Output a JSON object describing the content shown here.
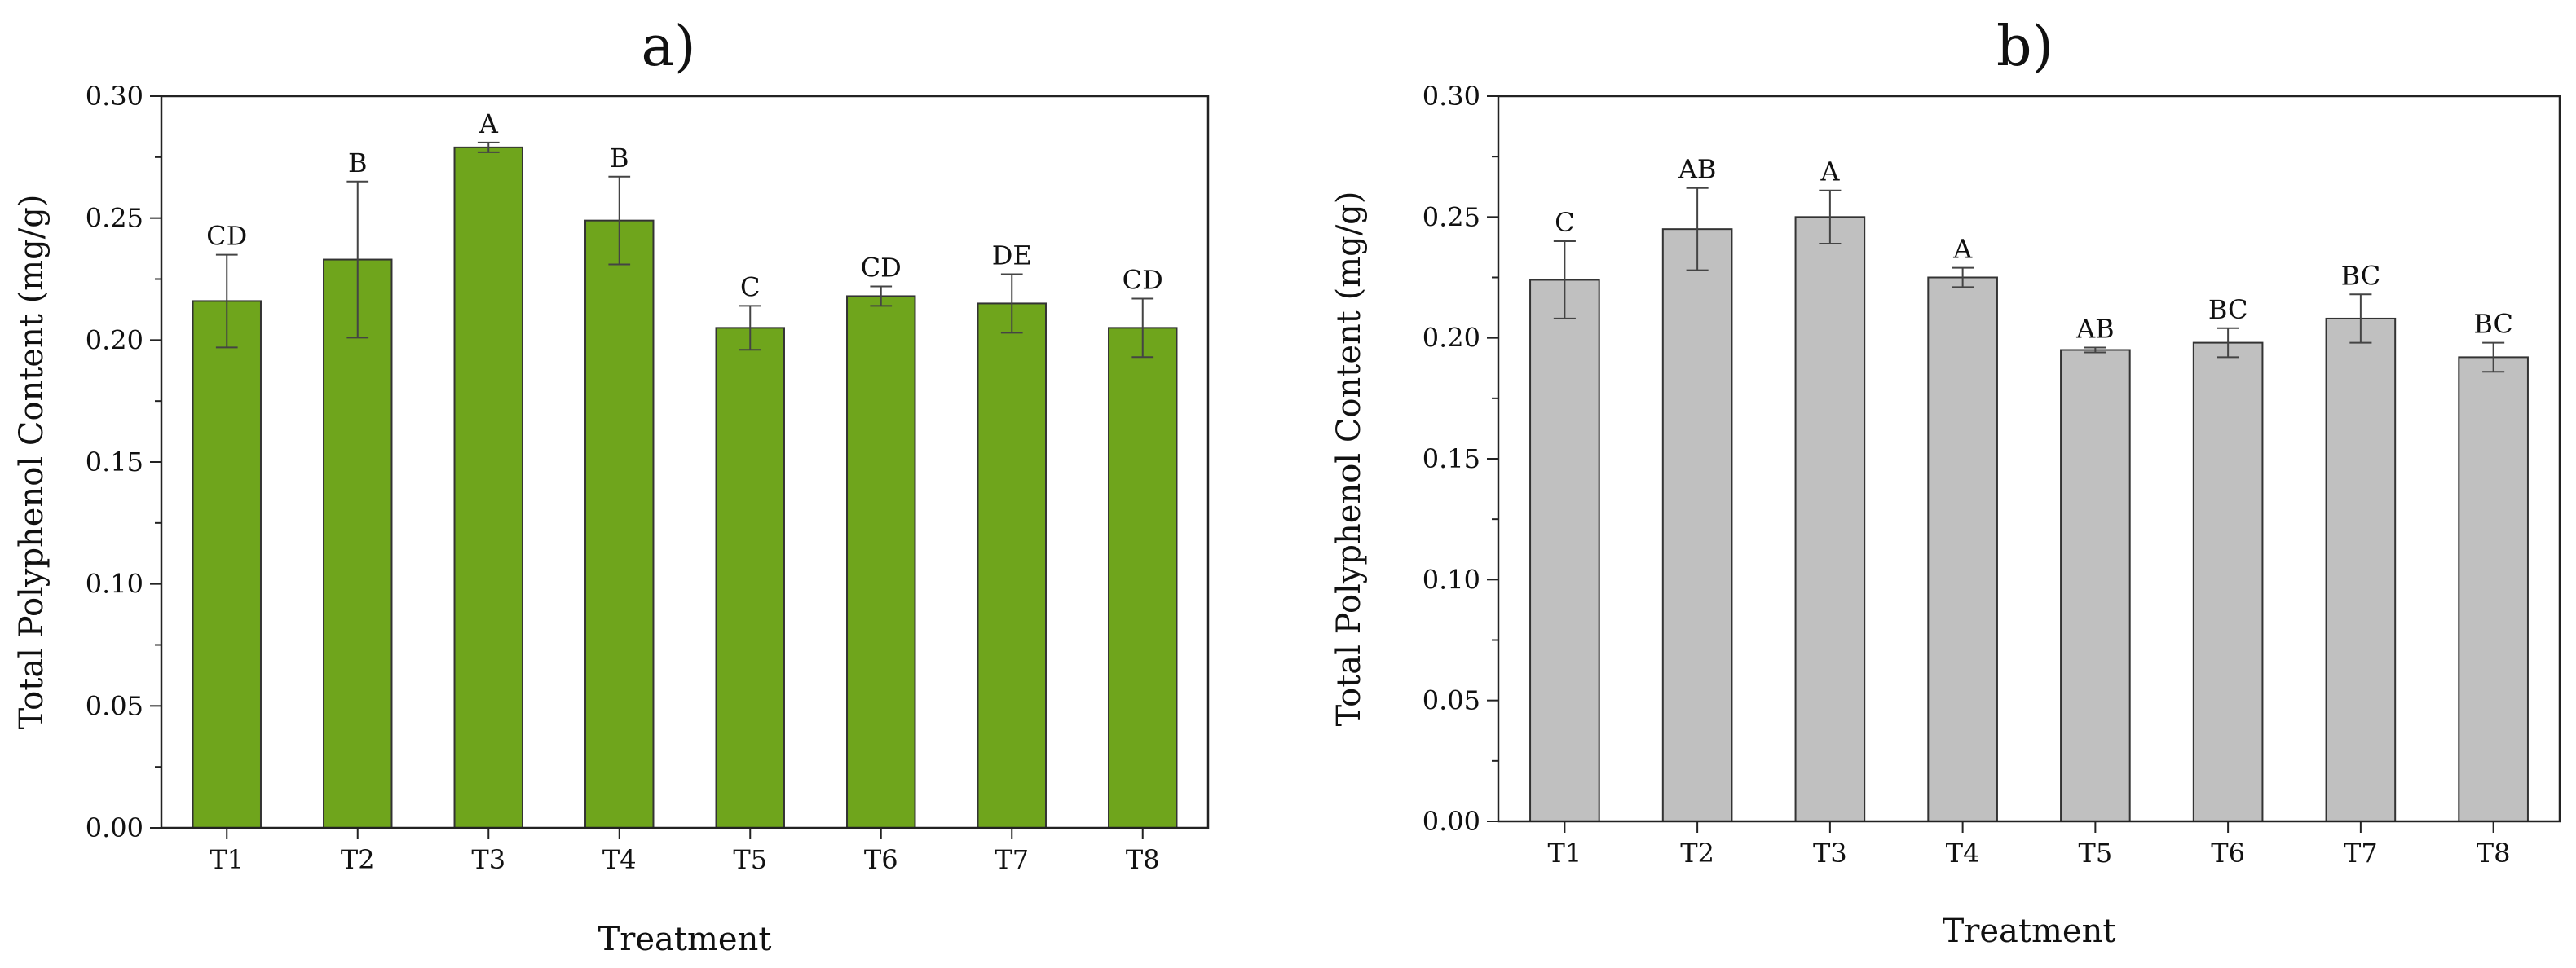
{
  "chart_data": [
    {
      "type": "bar",
      "title": "a)",
      "xlabel": "Treatment",
      "ylabel": "Total Polyphenol Content (mg/g)",
      "ylim": [
        0,
        0.3
      ],
      "yticks": [
        "0.00",
        "0.05",
        "0.10",
        "0.15",
        "0.20",
        "0.25",
        "0.30"
      ],
      "categories": [
        "T1",
        "T2",
        "T3",
        "T4",
        "T5",
        "T6",
        "T7",
        "T8"
      ],
      "values": [
        0.216,
        0.233,
        0.279,
        0.249,
        0.205,
        0.218,
        0.215,
        0.205
      ],
      "errors": [
        0.019,
        0.032,
        0.002,
        0.018,
        0.009,
        0.004,
        0.012,
        0.012
      ],
      "labels": [
        "CD",
        "B",
        "A",
        "B",
        "C",
        "CD",
        "DE",
        "CD"
      ],
      "bar_color": "#6fa51c",
      "grid": false
    },
    {
      "type": "bar",
      "title": "b)",
      "xlabel": "Treatment",
      "ylabel": "Total Polyphenol Content (mg/g)",
      "ylim": [
        0,
        0.3
      ],
      "yticks": [
        "0.00",
        "0.05",
        "0.10",
        "0.15",
        "0.20",
        "0.25",
        "0.30"
      ],
      "categories": [
        "T1",
        "T2",
        "T3",
        "T4",
        "T5",
        "T6",
        "T7",
        "T8"
      ],
      "values": [
        0.224,
        0.245,
        0.25,
        0.225,
        0.195,
        0.198,
        0.208,
        0.192
      ],
      "errors": [
        0.016,
        0.017,
        0.011,
        0.004,
        0.001,
        0.006,
        0.01,
        0.006
      ],
      "labels": [
        "C",
        "AB",
        "A",
        "A",
        "AB",
        "BC",
        "BC",
        "BC"
      ],
      "bar_color": "#c0c0c0",
      "grid": false
    }
  ]
}
